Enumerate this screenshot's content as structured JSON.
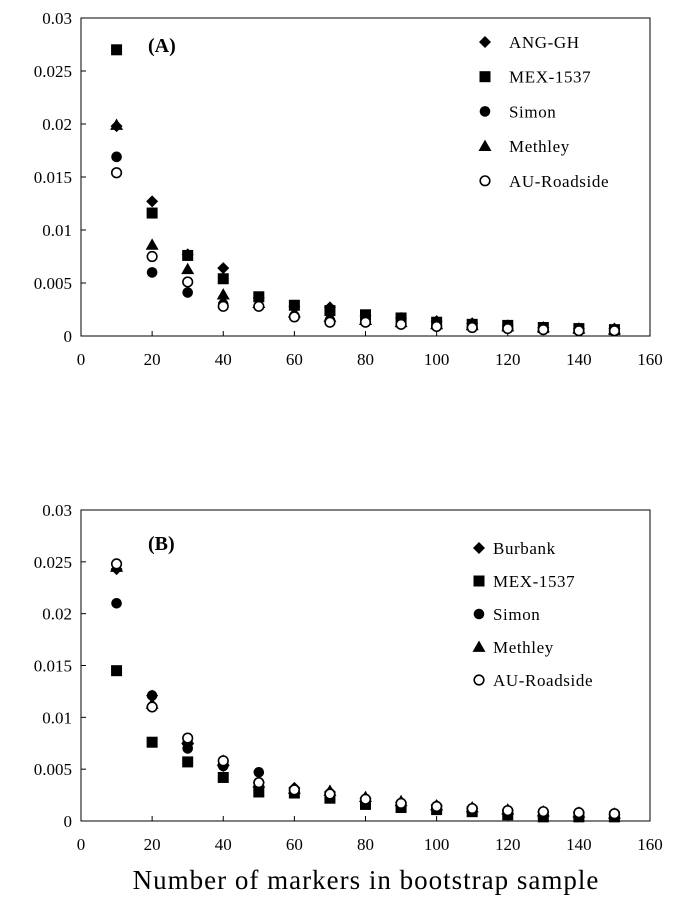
{
  "chart_data": [
    {
      "type": "scatter",
      "panel_label": "(A)",
      "xlabel": "",
      "ylabel": "",
      "xlim": [
        0,
        160
      ],
      "ylim": [
        0,
        0.03
      ],
      "xticks": [
        0,
        20,
        40,
        60,
        80,
        100,
        120,
        140,
        160
      ],
      "yticks": [
        0,
        0.005,
        0.01,
        0.015,
        0.02,
        0.025,
        0.03
      ],
      "xtick_labels": [
        "0",
        "20",
        "40",
        "60",
        "80",
        "100",
        "120",
        "140",
        "160"
      ],
      "ytick_labels": [
        "0",
        "0.005",
        "0.01",
        "0.015",
        "0.02",
        "0.025",
        "0.03"
      ],
      "grid": false,
      "legend_position": "top-right",
      "x": [
        10,
        20,
        30,
        40,
        50,
        60,
        70,
        80,
        90,
        100,
        110,
        120,
        130,
        140,
        150
      ],
      "series": [
        {
          "name": "ANG-GH",
          "marker": "diamond",
          "values": [
            0.0198,
            0.0127,
            0.0077,
            0.0064,
            0.0036,
            0.0028,
            0.0027,
            0.0019,
            0.0017,
            0.0014,
            0.0012,
            0.001,
            0.0008,
            0.0007,
            0.0007
          ]
        },
        {
          "name": "MEX-1537",
          "marker": "square",
          "values": [
            0.027,
            0.0116,
            0.0076,
            0.0054,
            0.0037,
            0.0029,
            0.0024,
            0.002,
            0.0017,
            0.0013,
            0.0011,
            0.001,
            0.0008,
            0.0007,
            0.0006
          ]
        },
        {
          "name": "Simon",
          "marker": "circle",
          "values": [
            0.0169,
            0.006,
            0.0041,
            0.003,
            0.0028,
            0.0019,
            0.0015,
            0.0013,
            0.0011,
            0.0009,
            0.0008,
            0.0007,
            0.0006,
            0.0005,
            0.0005
          ]
        },
        {
          "name": "Methley",
          "marker": "triangle",
          "values": [
            0.0199,
            0.0086,
            0.0063,
            0.0039,
            0.0031,
            0.0022,
            0.0018,
            0.0015,
            0.0013,
            0.0011,
            0.001,
            0.0009,
            0.0008,
            0.0007,
            0.0006
          ]
        },
        {
          "name": "AU-Roadside",
          "marker": "open-circle",
          "values": [
            0.0154,
            0.0075,
            0.0051,
            0.0028,
            0.0028,
            0.0018,
            0.0013,
            0.0013,
            0.0011,
            0.0009,
            0.0008,
            0.0007,
            0.0006,
            0.0005,
            0.0005
          ]
        }
      ]
    },
    {
      "type": "scatter",
      "panel_label": "(B)",
      "xlabel": "Number of markers in bootstrap sample",
      "ylabel": "",
      "xlim": [
        0,
        160
      ],
      "ylim": [
        0,
        0.03
      ],
      "xticks": [
        0,
        20,
        40,
        60,
        80,
        100,
        120,
        140,
        160
      ],
      "yticks": [
        0,
        0.005,
        0.01,
        0.015,
        0.02,
        0.025,
        0.03
      ],
      "xtick_labels": [
        "0",
        "20",
        "40",
        "60",
        "80",
        "100",
        "120",
        "140",
        "160"
      ],
      "ytick_labels": [
        "0",
        "0.005",
        "0.01",
        "0.015",
        "0.02",
        "0.025",
        "0.03"
      ],
      "grid": false,
      "legend_position": "top-right",
      "x": [
        10,
        20,
        30,
        40,
        50,
        60,
        70,
        80,
        90,
        100,
        110,
        120,
        130,
        140,
        150
      ],
      "series": [
        {
          "name": "Burbank",
          "marker": "diamond",
          "values": [
            0.0243,
            0.0121,
            0.0074,
            0.0053,
            0.0037,
            0.0032,
            0.0028,
            0.0022,
            0.0018,
            0.0015,
            0.0012,
            0.001,
            0.0009,
            0.0008,
            0.0006
          ]
        },
        {
          "name": "MEX-1537",
          "marker": "square",
          "values": [
            0.0145,
            0.0076,
            0.0057,
            0.0042,
            0.0028,
            0.0027,
            0.0022,
            0.0016,
            0.0013,
            0.0011,
            0.0009,
            0.0006,
            0.0004,
            0.0004,
            0.0004
          ]
        },
        {
          "name": "Simon",
          "marker": "circle",
          "values": [
            0.021,
            0.0121,
            0.007,
            0.0053,
            0.0047,
            0.0029,
            0.0026,
            0.0021,
            0.0017,
            0.0014,
            0.0012,
            0.001,
            0.0009,
            0.0008,
            0.0007
          ]
        },
        {
          "name": "Methley",
          "marker": "triangle",
          "values": [
            0.0245,
            0.0113,
            0.0079,
            0.0058,
            0.0037,
            0.0031,
            0.0029,
            0.0023,
            0.0019,
            0.0015,
            0.0013,
            0.0011,
            0.0009,
            0.0008,
            0.0007
          ]
        },
        {
          "name": "AU-Roadside",
          "marker": "open-circle",
          "values": [
            0.0248,
            0.011,
            0.008,
            0.0058,
            0.0037,
            0.003,
            0.0026,
            0.0021,
            0.0017,
            0.0014,
            0.0012,
            0.001,
            0.0009,
            0.0008,
            0.0007
          ]
        }
      ]
    }
  ]
}
